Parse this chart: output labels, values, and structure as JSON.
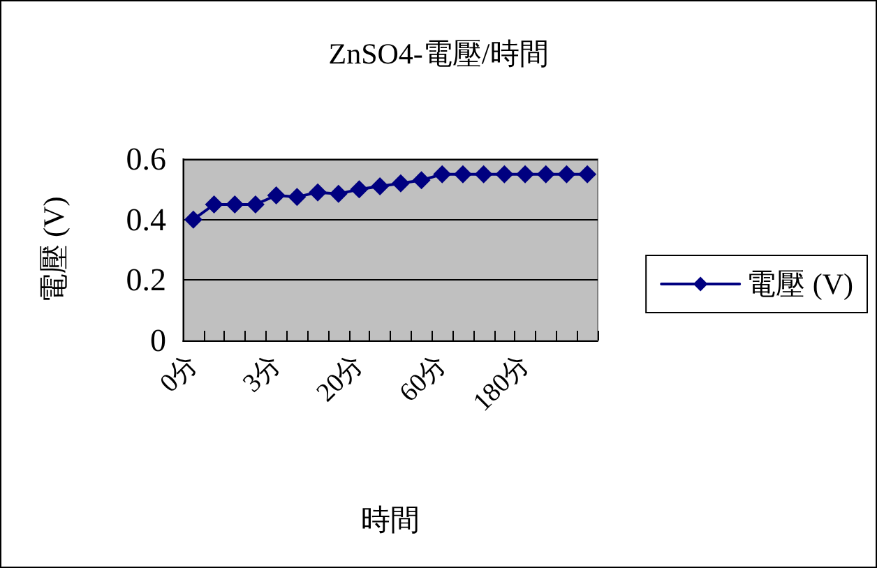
{
  "chart_data": {
    "type": "line",
    "title": "ZnSO4-電壓/時間",
    "xlabel": "時間",
    "ylabel": "電壓 (V)",
    "categories": [
      "0分",
      null,
      null,
      null,
      "3分",
      null,
      null,
      null,
      "20分",
      null,
      null,
      null,
      "60分",
      null,
      null,
      null,
      "180分",
      null,
      null,
      null
    ],
    "series": [
      {
        "name": "電壓 (V)",
        "color": "#000080",
        "values": [
          0.4,
          0.45,
          0.45,
          0.45,
          0.48,
          0.475,
          0.49,
          0.485,
          0.5,
          0.51,
          0.52,
          0.53,
          0.55,
          0.55,
          0.55,
          0.55,
          0.55,
          0.55,
          0.55,
          0.55
        ]
      }
    ],
    "ylim": [
      0,
      0.6
    ],
    "yticks": [
      0,
      0.2,
      0.4,
      0.6
    ],
    "grid": "y",
    "legend": "right",
    "marker": "diamond",
    "line_style": "solid"
  }
}
